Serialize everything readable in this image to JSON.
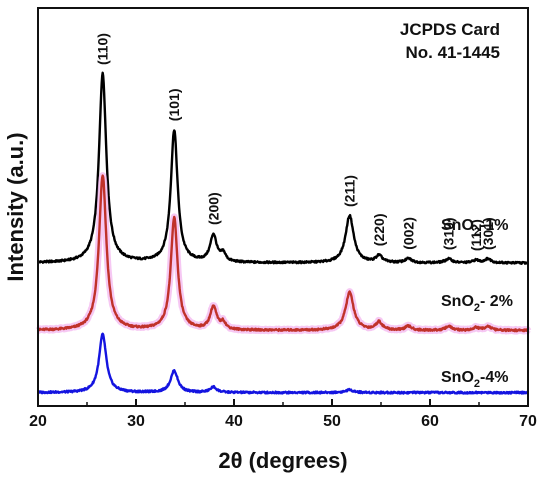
{
  "chart_data": {
    "type": "line",
    "xlabel": "2θ (degrees)",
    "ylabel": "Intensity (a.u.)",
    "xlim": [
      20,
      70
    ],
    "x_ticks": [
      20,
      30,
      40,
      50,
      60,
      70
    ],
    "y_ticks_shown": false,
    "grid": false,
    "reference_card": [
      "JCPDS Card",
      "No. 41-1445"
    ],
    "peak_labels": [
      {
        "text": "(110)",
        "x": 26.6
      },
      {
        "text": "(101)",
        "x": 33.9
      },
      {
        "text": "(200)",
        "x": 37.9
      },
      {
        "text": "(211)",
        "x": 51.8
      },
      {
        "text": "(220)",
        "x": 54.8
      },
      {
        "text": "(002)",
        "x": 57.8
      },
      {
        "text": "(310)",
        "x": 61.9
      },
      {
        "text": "(112)",
        "x": 64.7
      },
      {
        "text": "(301)",
        "x": 65.9
      }
    ],
    "series": [
      {
        "name": "SnO2-1%",
        "color": "#000000",
        "baseline": 100,
        "peaks": [
          {
            "x": 26.6,
            "height": 140,
            "width": 0.45
          },
          {
            "x": 33.9,
            "height": 98,
            "width": 0.42
          },
          {
            "x": 37.9,
            "height": 20,
            "width": 0.4
          },
          {
            "x": 38.9,
            "height": 6,
            "width": 0.3
          },
          {
            "x": 51.8,
            "height": 35,
            "width": 0.5
          },
          {
            "x": 54.8,
            "height": 5,
            "width": 0.4
          },
          {
            "x": 57.8,
            "height": 3,
            "width": 0.4
          },
          {
            "x": 61.9,
            "height": 3,
            "width": 0.4
          },
          {
            "x": 64.7,
            "height": 2,
            "width": 0.35
          },
          {
            "x": 65.9,
            "height": 3,
            "width": 0.4
          }
        ]
      },
      {
        "name": "SnO2-2%",
        "color": "#c0322a",
        "highlight": "#f3b6ef",
        "baseline": 50,
        "peaks": [
          {
            "x": 26.6,
            "height": 115,
            "width": 0.45
          },
          {
            "x": 33.9,
            "height": 83,
            "width": 0.42
          },
          {
            "x": 37.9,
            "height": 17,
            "width": 0.4
          },
          {
            "x": 38.9,
            "height": 5,
            "width": 0.3
          },
          {
            "x": 51.8,
            "height": 28,
            "width": 0.5
          },
          {
            "x": 54.8,
            "height": 6,
            "width": 0.4
          },
          {
            "x": 57.8,
            "height": 3,
            "width": 0.4
          },
          {
            "x": 61.9,
            "height": 3,
            "width": 0.4
          },
          {
            "x": 64.7,
            "height": 2,
            "width": 0.35
          },
          {
            "x": 65.9,
            "height": 3,
            "width": 0.4
          }
        ]
      },
      {
        "name": "SnO2-4%",
        "color": "#1414e0",
        "baseline": 4,
        "peaks": [
          {
            "x": 26.6,
            "height": 43,
            "width": 0.45
          },
          {
            "x": 33.9,
            "height": 16,
            "width": 0.45
          },
          {
            "x": 37.9,
            "height": 4,
            "width": 0.4
          },
          {
            "x": 51.8,
            "height": 2,
            "width": 0.5
          }
        ]
      }
    ],
    "sample_labels": [
      {
        "base": "SnO",
        "sub": "2",
        "suffix": "-1%"
      },
      {
        "base": "SnO",
        "sub": "2",
        "suffix": "- 2%"
      },
      {
        "base": "SnO",
        "sub": "2",
        "suffix": "-4%"
      }
    ]
  }
}
